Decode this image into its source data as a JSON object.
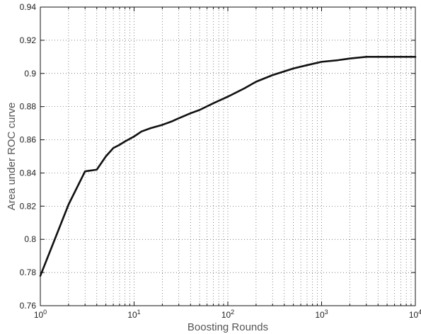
{
  "chart_data": {
    "type": "line",
    "title": "",
    "xlabel": "Boosting Rounds",
    "ylabel": "Area under ROC curve",
    "xscale": "log",
    "xlim": [
      1,
      10000
    ],
    "ylim": [
      0.76,
      0.94
    ],
    "grid": true,
    "x_tick_labels": [
      {
        "base": "10",
        "exp": "0"
      },
      {
        "base": "10",
        "exp": "1"
      },
      {
        "base": "10",
        "exp": "2"
      },
      {
        "base": "10",
        "exp": "3"
      },
      {
        "base": "10",
        "exp": "4"
      }
    ],
    "y_tick_labels": [
      "0.76",
      "0.78",
      "0.8",
      "0.82",
      "0.84",
      "0.86",
      "0.88",
      "0.9",
      "0.92",
      "0.94"
    ],
    "series": [
      {
        "color": "#111111",
        "x": [
          1,
          2,
          3,
          4,
          5,
          6,
          7,
          8,
          10,
          12,
          15,
          20,
          25,
          30,
          40,
          50,
          70,
          100,
          150,
          200,
          300,
          500,
          700,
          1000,
          1500,
          2000,
          3000,
          5000,
          7000,
          10000
        ],
        "y": [
          0.778,
          0.821,
          0.841,
          0.842,
          0.85,
          0.855,
          0.857,
          0.859,
          0.862,
          0.865,
          0.867,
          0.869,
          0.871,
          0.873,
          0.876,
          0.878,
          0.882,
          0.886,
          0.891,
          0.895,
          0.899,
          0.903,
          0.905,
          0.907,
          0.908,
          0.909,
          0.91,
          0.91,
          0.91,
          0.91
        ]
      }
    ]
  }
}
